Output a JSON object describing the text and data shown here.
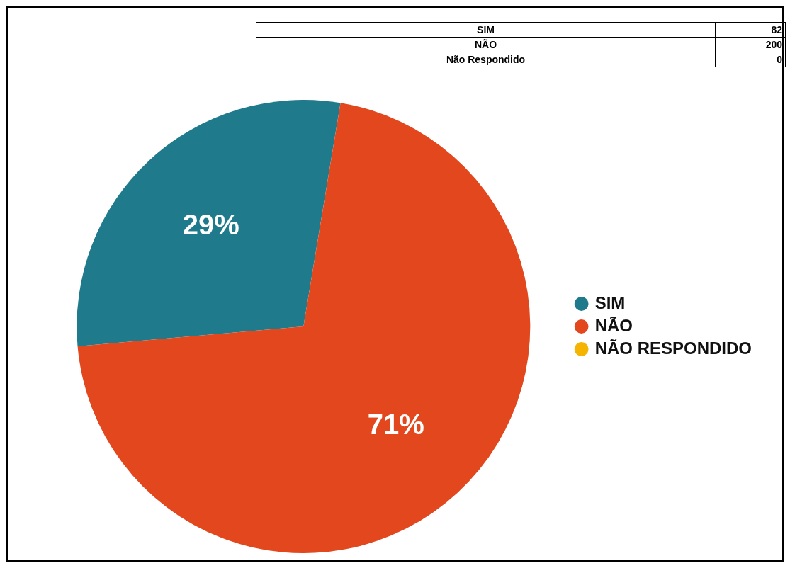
{
  "chart_data": {
    "type": "pie",
    "categories": [
      "SIM",
      "NÃO",
      "NÃO RESPONDIDO"
    ],
    "values": [
      29,
      71,
      0
    ],
    "colors": [
      "#1f7a8c",
      "#e2471d",
      "#f5b400"
    ],
    "value_labels": [
      "29%",
      "71%",
      null
    ],
    "annotations": [
      "SIM",
      "82",
      "NÃO",
      "200",
      "Não Respondido",
      "0"
    ],
    "legend": "right"
  }
}
